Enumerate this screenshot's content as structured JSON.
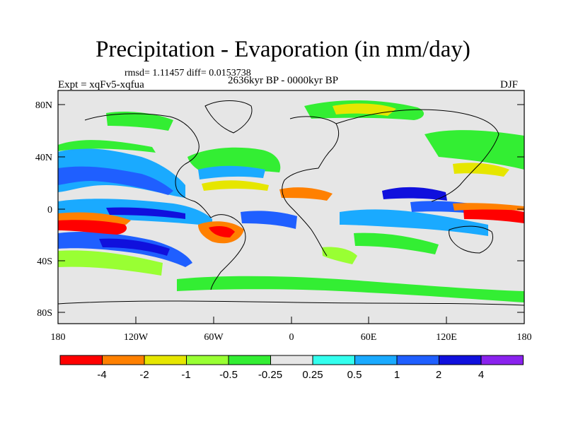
{
  "title": "Precipitation - Evaporation (in mm/day)",
  "stats": "rmsd= 1.11457 diff= 0.0153738",
  "experiment": "Expt = xqFv5-xqfua",
  "period": "2636kyr BP - 0000kyr BP",
  "season": "DJF",
  "y_ticks": [
    "80N",
    "40N",
    "0",
    "40S",
    "80S"
  ],
  "x_ticks": [
    "180",
    "120W",
    "60W",
    "0",
    "60E",
    "120E",
    "180"
  ],
  "colorbar": {
    "colors": [
      "#ff0000",
      "#ff8000",
      "#e6e600",
      "#99ff33",
      "#33ee33",
      "#e6e6e6",
      "#33ffee",
      "#1aaaff",
      "#1f5fff",
      "#1010dd",
      "#8a22ee"
    ],
    "labels": [
      "-4",
      "-2",
      "-1",
      "-0.5",
      "-0.25",
      "0.25",
      "0.5",
      "1",
      "2",
      "4"
    ]
  },
  "palette": {
    "neutral": "#e6e6e6",
    "coast": "#000000"
  }
}
